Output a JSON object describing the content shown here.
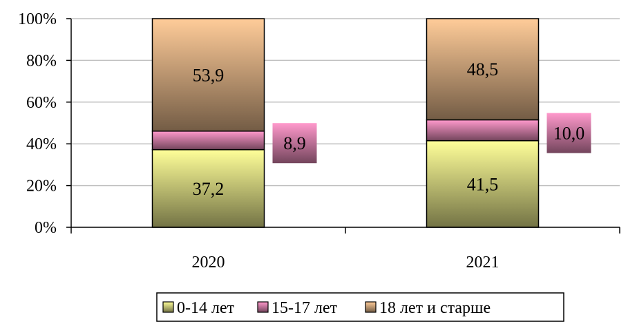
{
  "chart_data": {
    "type": "bar",
    "stacked": true,
    "percent_stacked": true,
    "categories": [
      "2020",
      "2021"
    ],
    "series": [
      {
        "name": "0-14 лет",
        "values": [
          37.2,
          41.5
        ],
        "labels": [
          "37,2",
          "41,5"
        ],
        "color": "#ffff99"
      },
      {
        "name": "15-17 лет",
        "values": [
          8.9,
          10.0
        ],
        "labels": [
          "8,9",
          "10,0"
        ],
        "color": "#ff99cc"
      },
      {
        "name": "18 лет и старше",
        "values": [
          53.9,
          48.5
        ],
        "labels": [
          "53,9",
          "48,5"
        ],
        "color": "#ffcc99"
      }
    ],
    "ylim": [
      0,
      100
    ],
    "yticks": [
      "0%",
      "20%",
      "40%",
      "60%",
      "80%",
      "100%"
    ],
    "grid": true,
    "legend": "bottom"
  }
}
